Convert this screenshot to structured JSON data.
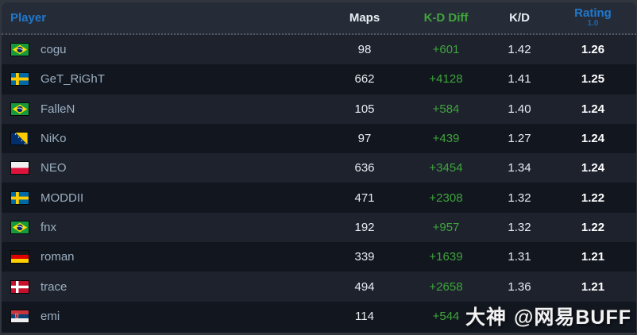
{
  "table": {
    "columns": {
      "player": "Player",
      "maps": "Maps",
      "kd_diff": "K-D Diff",
      "kd": "K/D",
      "rating": "Rating",
      "rating_sub": "1.0"
    },
    "rows": [
      {
        "player": "cogu",
        "country": "Brazil",
        "flag": "br",
        "maps": "98",
        "kd_diff": "+601",
        "kd": "1.42",
        "rating": "1.26"
      },
      {
        "player": "GeT_RiGhT",
        "country": "Sweden",
        "flag": "se",
        "maps": "662",
        "kd_diff": "+4128",
        "kd": "1.41",
        "rating": "1.25"
      },
      {
        "player": "FalleN",
        "country": "Brazil",
        "flag": "br",
        "maps": "105",
        "kd_diff": "+584",
        "kd": "1.40",
        "rating": "1.24"
      },
      {
        "player": "NiKo",
        "country": "Bosnia and Herzegovina",
        "flag": "ba",
        "maps": "97",
        "kd_diff": "+439",
        "kd": "1.27",
        "rating": "1.24"
      },
      {
        "player": "NEO",
        "country": "Poland",
        "flag": "pl",
        "maps": "636",
        "kd_diff": "+3454",
        "kd": "1.34",
        "rating": "1.24"
      },
      {
        "player": "MODDII",
        "country": "Sweden",
        "flag": "se",
        "maps": "471",
        "kd_diff": "+2308",
        "kd": "1.32",
        "rating": "1.22"
      },
      {
        "player": "fnx",
        "country": "Brazil",
        "flag": "br",
        "maps": "192",
        "kd_diff": "+957",
        "kd": "1.32",
        "rating": "1.22"
      },
      {
        "player": "roman",
        "country": "Germany",
        "flag": "de",
        "maps": "339",
        "kd_diff": "+1639",
        "kd": "1.31",
        "rating": "1.21"
      },
      {
        "player": "trace",
        "country": "Denmark",
        "flag": "dk",
        "maps": "494",
        "kd_diff": "+2658",
        "kd": "1.36",
        "rating": "1.21"
      },
      {
        "player": "emi",
        "country": "Serbia",
        "flag": "rs",
        "maps": "114",
        "kd_diff": "+544",
        "kd": "",
        "rating": ""
      }
    ]
  },
  "watermark": {
    "logo": "大神",
    "handle": "@网易BUFF"
  },
  "colors": {
    "accent": "#1f78cf",
    "positive": "#3fa43c",
    "header_bg": "#262c37",
    "row_light": "#1d222d",
    "row_dark": "#12161f",
    "page_bg": "#31353d"
  },
  "chart_data": {
    "type": "table",
    "title": "Player statistics leaderboard",
    "columns": [
      "Player",
      "Maps",
      "K-D Diff",
      "K/D",
      "Rating 1.0"
    ],
    "rows": [
      [
        "cogu",
        98,
        601,
        1.42,
        1.26
      ],
      [
        "GeT_RiGhT",
        662,
        4128,
        1.41,
        1.25
      ],
      [
        "FalleN",
        105,
        584,
        1.4,
        1.24
      ],
      [
        "NiKo",
        97,
        439,
        1.27,
        1.24
      ],
      [
        "NEO",
        636,
        3454,
        1.34,
        1.24
      ],
      [
        "MODDII",
        471,
        2308,
        1.32,
        1.22
      ],
      [
        "fnx",
        192,
        957,
        1.32,
        1.22
      ],
      [
        "roman",
        339,
        1639,
        1.31,
        1.21
      ],
      [
        "trace",
        494,
        2658,
        1.36,
        1.21
      ],
      [
        "emi",
        114,
        544,
        null,
        null
      ]
    ]
  }
}
